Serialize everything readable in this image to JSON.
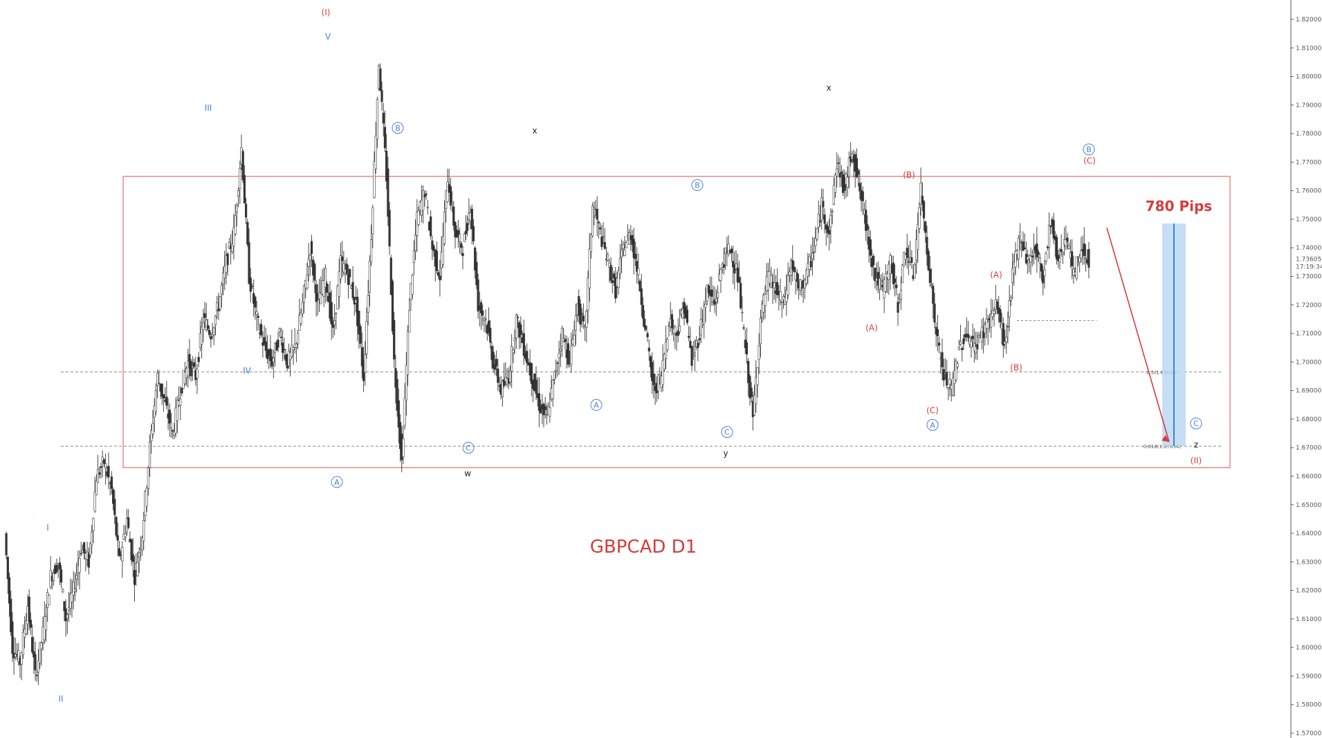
{
  "chart_data": {
    "type": "line",
    "title": "GBPCAD D1",
    "ylim": [
      1.57,
      1.82
    ],
    "y_ticks": [
      "1.82000",
      "1.81000",
      "1.80000",
      "1.79000",
      "1.78000",
      "1.77000",
      "1.76000",
      "1.75000",
      "1.74000",
      "1.73000",
      "1.72000",
      "1.71000",
      "1.70000",
      "1.69000",
      "1.68000",
      "1.67000",
      "1.66000",
      "1.65000",
      "1.64000",
      "1.63000",
      "1.62000",
      "1.61000",
      "1.60000",
      "1.59000",
      "1.58000",
      "1.57000"
    ],
    "current_price_label": "1.73605",
    "timer_label": "17:19:34",
    "range_box": {
      "top": 1.765,
      "bottom": 1.663
    },
    "dashed_levels": [
      {
        "price": 1.6965,
        "label": "0.5(1.69634)"
      },
      {
        "price": 1.6705,
        "label": "0.618(1.67054)"
      },
      {
        "price": 1.7145,
        "label": ""
      }
    ],
    "projection": {
      "label": "780 Pips",
      "from": 1.7485,
      "to": 1.6705
    },
    "series": [
      {
        "values": [
          1.64,
          1.6,
          1.595,
          1.615,
          1.59,
          1.605,
          1.625,
          1.63,
          1.61,
          1.62,
          1.635,
          1.63,
          1.66,
          1.665,
          1.655,
          1.63,
          1.645,
          1.625,
          1.64,
          1.67,
          1.695,
          1.685,
          1.675,
          1.69,
          1.7,
          1.695,
          1.715,
          1.71,
          1.72,
          1.735,
          1.745,
          1.775,
          1.73,
          1.715,
          1.705,
          1.7,
          1.71,
          1.7,
          1.705,
          1.72,
          1.74,
          1.72,
          1.73,
          1.71,
          1.735,
          1.73,
          1.72,
          1.695,
          1.745,
          1.805,
          1.765,
          1.7,
          1.665,
          1.72,
          1.75,
          1.76,
          1.74,
          1.73,
          1.765,
          1.745,
          1.74,
          1.755,
          1.72,
          1.715,
          1.7,
          1.69,
          1.695,
          1.715,
          1.705,
          1.695,
          1.685,
          1.68,
          1.695,
          1.71,
          1.7,
          1.72,
          1.71,
          1.755,
          1.745,
          1.735,
          1.725,
          1.74,
          1.745,
          1.73,
          1.71,
          1.69,
          1.695,
          1.715,
          1.71,
          1.72,
          1.7,
          1.71,
          1.725,
          1.72,
          1.735,
          1.74,
          1.73,
          1.705,
          1.68,
          1.715,
          1.73,
          1.725,
          1.72,
          1.735,
          1.725,
          1.73,
          1.74,
          1.755,
          1.745,
          1.77,
          1.76,
          1.775,
          1.76,
          1.745,
          1.73,
          1.725,
          1.735,
          1.72,
          1.74,
          1.73,
          1.76,
          1.735,
          1.71,
          1.695,
          1.69,
          1.705,
          1.71,
          1.705,
          1.71,
          1.715,
          1.72,
          1.705,
          1.73,
          1.745,
          1.735,
          1.74,
          1.73,
          1.75,
          1.735,
          1.745,
          1.73,
          1.74,
          1.736
        ]
      }
    ],
    "wave_labels": [
      {
        "text": "I",
        "price": 1.641,
        "color": "#4a7fd6",
        "circled": false
      },
      {
        "text": "II",
        "price": 1.581,
        "color": "#4a7fd6",
        "circled": false
      },
      {
        "text": "III",
        "price": 1.788,
        "color": "#4a7fd6",
        "circled": false
      },
      {
        "text": "IV",
        "price": 1.696,
        "color": "#4a7fd6",
        "circled": false
      },
      {
        "text": "V",
        "price": 1.813,
        "color": "#4a7fd6",
        "circled": false
      },
      {
        "text": "(I)",
        "price": 1.8215,
        "color": "#d63c3c",
        "circled": false
      },
      {
        "text": "A",
        "price": 1.657,
        "color": "#4a7fd6",
        "circled": true
      },
      {
        "text": "B",
        "price": 1.781,
        "color": "#4a7fd6",
        "circled": true
      },
      {
        "text": "C",
        "price": 1.669,
        "color": "#4a7fd6",
        "circled": true
      },
      {
        "text": "w",
        "price": 1.66,
        "color": "#222222",
        "circled": false
      },
      {
        "text": "x",
        "price": 1.78,
        "color": "#222222",
        "circled": false
      },
      {
        "text": "A",
        "price": 1.684,
        "color": "#4a7fd6",
        "circled": true
      },
      {
        "text": "B",
        "price": 1.761,
        "color": "#4a7fd6",
        "circled": true
      },
      {
        "text": "C",
        "price": 1.6745,
        "color": "#4a7fd6",
        "circled": true
      },
      {
        "text": "y",
        "price": 1.667,
        "color": "#222222",
        "circled": false
      },
      {
        "text": "x",
        "price": 1.795,
        "color": "#222222",
        "circled": false
      },
      {
        "text": "(A)",
        "price": 1.711,
        "color": "#d63c3c",
        "circled": false
      },
      {
        "text": "(B)",
        "price": 1.7645,
        "color": "#d63c3c",
        "circled": false
      },
      {
        "text": "(C)",
        "price": 1.682,
        "color": "#d63c3c",
        "circled": false
      },
      {
        "text": "A",
        "price": 1.677,
        "color": "#4a7fd6",
        "circled": true
      },
      {
        "text": "(A)",
        "price": 1.7295,
        "color": "#d63c3c",
        "circled": false
      },
      {
        "text": "(B)",
        "price": 1.697,
        "color": "#d63c3c",
        "circled": false
      },
      {
        "text": "B",
        "price": 1.7735,
        "color": "#4a7fd6",
        "circled": true
      },
      {
        "text": "(C)",
        "price": 1.7695,
        "color": "#d63c3c",
        "circled": false
      },
      {
        "text": "C",
        "price": 1.6775,
        "color": "#4a7fd6",
        "circled": true
      },
      {
        "text": "z",
        "price": 1.67,
        "color": "#222222",
        "circled": false
      },
      {
        "text": "(II)",
        "price": 1.6645,
        "color": "#d63c3c",
        "circled": false
      }
    ]
  }
}
